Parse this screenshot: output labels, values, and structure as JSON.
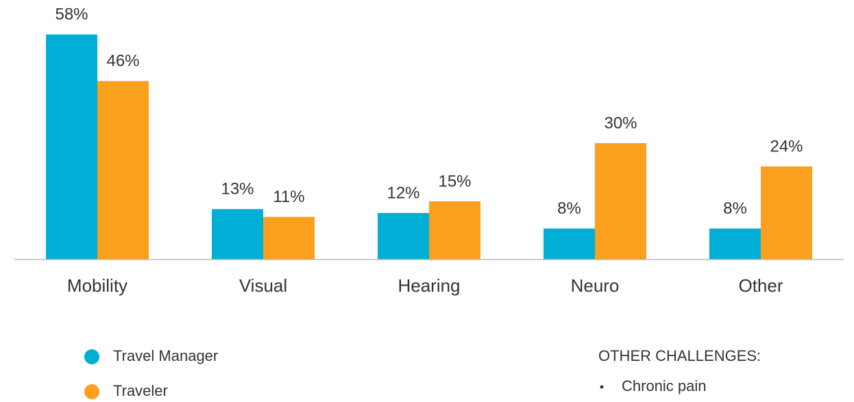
{
  "chart_data": {
    "type": "bar",
    "categories": [
      "Mobility",
      "Visual",
      "Hearing",
      "Neuro",
      "Other"
    ],
    "series": [
      {
        "name": "Travel Manager",
        "color": "#00aed6",
        "values": [
          58,
          13,
          12,
          8,
          8
        ],
        "value_labels": [
          "58%",
          "13%",
          "12%",
          "8%",
          "8%"
        ]
      },
      {
        "name": "Traveler",
        "color": "#fb9f1f",
        "values": [
          46,
          11,
          15,
          30,
          24
        ],
        "value_labels": [
          "46%",
          "11%",
          "15%",
          "30%",
          "24%"
        ]
      }
    ],
    "ylim": [
      0,
      60
    ],
    "grid": false
  },
  "notes": {
    "title": "OTHER CHALLENGES:",
    "items": [
      "Chronic pain"
    ]
  }
}
